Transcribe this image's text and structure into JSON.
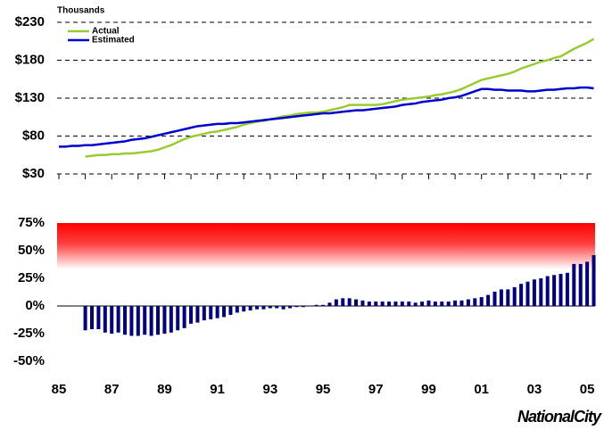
{
  "chart_data": [
    {
      "type": "line",
      "y_unit": "Thousands",
      "x": [
        1985,
        1985.25,
        1985.5,
        1985.75,
        1986,
        1986.25,
        1986.5,
        1986.75,
        1987,
        1987.25,
        1987.5,
        1987.75,
        1988,
        1988.25,
        1988.5,
        1988.75,
        1989,
        1989.25,
        1989.5,
        1989.75,
        1990,
        1990.25,
        1990.5,
        1990.75,
        1991,
        1991.25,
        1991.5,
        1991.75,
        1992,
        1992.25,
        1992.5,
        1992.75,
        1993,
        1993.25,
        1993.5,
        1993.75,
        1994,
        1994.25,
        1994.5,
        1994.75,
        1995,
        1995.25,
        1995.5,
        1995.75,
        1996,
        1996.25,
        1996.5,
        1996.75,
        1997,
        1997.25,
        1997.5,
        1997.75,
        1998,
        1998.25,
        1998.5,
        1998.75,
        1999,
        1999.25,
        1999.5,
        1999.75,
        2000,
        2000.25,
        2000.5,
        2000.75,
        2001,
        2001.25,
        2001.5,
        2001.75,
        2002,
        2002.25,
        2002.5,
        2002.75,
        2003,
        2003.25,
        2003.5,
        2003.75,
        2004,
        2004.25,
        2004.5,
        2004.75,
        2005,
        2005.25
      ],
      "series": [
        {
          "name": "Actual",
          "color": "#99cc33",
          "values": [
            null,
            null,
            null,
            null,
            53,
            54,
            55,
            55,
            56,
            56,
            57,
            57,
            58,
            59,
            60,
            62,
            65,
            68,
            72,
            76,
            79,
            81,
            83,
            85,
            86,
            88,
            90,
            92,
            95,
            97,
            99,
            100,
            102,
            104,
            106,
            107,
            109,
            110,
            111,
            111,
            112,
            114,
            116,
            118,
            121,
            121,
            121,
            121,
            121,
            122,
            124,
            126,
            128,
            129,
            130,
            131,
            132,
            134,
            135,
            137,
            139,
            142,
            146,
            150,
            154,
            156,
            158,
            160,
            162,
            165,
            169,
            172,
            175,
            178,
            180,
            183,
            185,
            190,
            195,
            199,
            203,
            208
          ]
        },
        {
          "name": "Estimated",
          "color": "#0000cc",
          "values": [
            66,
            66,
            67,
            67,
            68,
            68,
            69,
            70,
            71,
            72,
            73,
            75,
            76,
            77,
            79,
            81,
            83,
            85,
            87,
            89,
            91,
            93,
            94,
            95,
            96,
            96,
            97,
            97,
            98,
            99,
            100,
            101,
            102,
            103,
            104,
            105,
            106,
            107,
            108,
            109,
            110,
            110,
            111,
            112,
            113,
            114,
            114,
            115,
            116,
            117,
            118,
            119,
            121,
            122,
            123,
            125,
            126,
            127,
            128,
            130,
            131,
            133,
            136,
            139,
            142,
            142,
            141,
            141,
            140,
            140,
            140,
            139,
            139,
            140,
            141,
            141,
            142,
            143,
            143,
            144,
            144,
            143
          ]
        }
      ],
      "xlim": [
        1985,
        2005.3
      ],
      "xticks": [
        1985,
        1986,
        1987,
        1988,
        1989,
        1990,
        1991,
        1992,
        1993,
        1994,
        1995,
        1996,
        1997,
        1998,
        1999,
        2000,
        2001,
        2002,
        2003,
        2004,
        2005
      ],
      "ylim": [
        30,
        230
      ],
      "yticks": [
        {
          "value": 30,
          "label": "$30"
        },
        {
          "value": 80,
          "label": "$80"
        },
        {
          "value": 130,
          "label": "$130"
        },
        {
          "value": 180,
          "label": "$180"
        },
        {
          "value": 230,
          "label": "$230"
        }
      ],
      "grid": true,
      "legend": "top-left"
    },
    {
      "type": "bar",
      "x": [
        1986,
        1986.25,
        1986.5,
        1986.75,
        1987,
        1987.25,
        1987.5,
        1987.75,
        1988,
        1988.25,
        1988.5,
        1988.75,
        1989,
        1989.25,
        1989.5,
        1989.75,
        1990,
        1990.25,
        1990.5,
        1990.75,
        1991,
        1991.25,
        1991.5,
        1991.75,
        1992,
        1992.25,
        1992.5,
        1992.75,
        1993,
        1993.25,
        1993.5,
        1993.75,
        1994,
        1994.25,
        1994.5,
        1994.75,
        1995,
        1995.25,
        1995.5,
        1995.75,
        1996,
        1996.25,
        1996.5,
        1996.75,
        1997,
        1997.25,
        1997.5,
        1997.75,
        1998,
        1998.25,
        1998.5,
        1998.75,
        1999,
        1999.25,
        1999.5,
        1999.75,
        2000,
        2000.25,
        2000.5,
        2000.75,
        2001,
        2001.25,
        2001.5,
        2001.75,
        2002,
        2002.25,
        2002.5,
        2002.75,
        2003,
        2003.25,
        2003.5,
        2003.75,
        2004,
        2004.25,
        2004.5,
        2004.75,
        2005,
        2005.25
      ],
      "values": [
        -22,
        -21,
        -21,
        -24,
        -25,
        -24,
        -26,
        -27,
        -27,
        -26,
        -27,
        -26,
        -25,
        -24,
        -22,
        -20,
        -16,
        -15,
        -13,
        -12,
        -11,
        -10,
        -8,
        -6,
        -5,
        -4,
        -3,
        -3,
        -2,
        -2,
        -3,
        -2,
        -1,
        -1,
        0,
        1,
        1,
        3,
        6,
        7,
        7,
        6,
        5,
        4,
        4,
        4,
        4,
        4,
        4,
        4,
        3,
        4,
        5,
        4,
        4,
        4,
        5,
        5,
        6,
        7,
        8,
        10,
        13,
        15,
        15,
        17,
        20,
        22,
        24,
        25,
        27,
        28,
        29,
        30,
        38,
        38,
        40,
        46
      ],
      "color": "#000080",
      "xlim": [
        1985,
        2005.3
      ],
      "xticks": [
        {
          "value": 1985,
          "label": "85"
        },
        {
          "value": 1987,
          "label": "87"
        },
        {
          "value": 1989,
          "label": "89"
        },
        {
          "value": 1991,
          "label": "91"
        },
        {
          "value": 1993,
          "label": "93"
        },
        {
          "value": 1995,
          "label": "95"
        },
        {
          "value": 1997,
          "label": "97"
        },
        {
          "value": 1999,
          "label": "99"
        },
        {
          "value": 2001,
          "label": "01"
        },
        {
          "value": 2003,
          "label": "03"
        },
        {
          "value": 2005,
          "label": "05"
        }
      ],
      "ylim": [
        -50,
        75
      ],
      "yticks": [
        {
          "value": 75,
          "label": "75%"
        },
        {
          "value": 50,
          "label": "50%"
        },
        {
          "value": 25,
          "label": "25%"
        },
        {
          "value": 0,
          "label": "0%"
        },
        {
          "value": -25,
          "label": "-25%"
        },
        {
          "value": -50,
          "label": "-50%"
        }
      ]
    }
  ],
  "logo": "NationalCity"
}
